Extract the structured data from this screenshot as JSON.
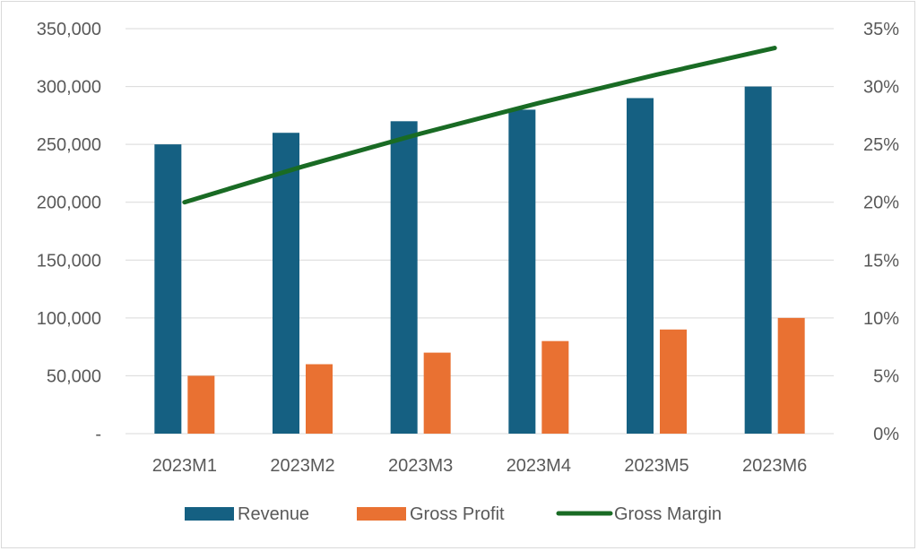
{
  "chart_data": {
    "type": "bar",
    "categories": [
      "2023M1",
      "2023M2",
      "2023M3",
      "2023M4",
      "2023M5",
      "2023M6"
    ],
    "series": [
      {
        "name": "Revenue",
        "type": "bar",
        "axis": "left",
        "color": "#156082",
        "values": [
          250000,
          260000,
          270000,
          280000,
          290000,
          300000
        ]
      },
      {
        "name": "Gross Profit",
        "type": "bar",
        "axis": "left",
        "color": "#E97132",
        "values": [
          50000,
          60000,
          70000,
          80000,
          90000,
          100000
        ]
      },
      {
        "name": "Gross Margin",
        "type": "line",
        "axis": "right",
        "color": "#196B24",
        "values": [
          0.2,
          0.2308,
          0.2593,
          0.2857,
          0.3103,
          0.3333
        ]
      }
    ],
    "y_left": {
      "ylim": [
        0,
        350000
      ],
      "tick_values": [
        0,
        50000,
        100000,
        150000,
        200000,
        250000,
        300000,
        350000
      ],
      "tick_labels": [
        "-",
        "50,000",
        "100,000",
        "150,000",
        "200,000",
        "250,000",
        "300,000",
        "350,000"
      ]
    },
    "y_right": {
      "ylim": [
        0,
        0.35
      ],
      "tick_values": [
        0,
        0.05,
        0.1,
        0.15,
        0.2,
        0.25,
        0.3,
        0.35
      ],
      "tick_labels": [
        "0%",
        "5%",
        "10%",
        "15%",
        "20%",
        "25%",
        "30%",
        "35%"
      ]
    },
    "grid": true,
    "legend": "bottom",
    "title": "",
    "xlabel": "",
    "ylabel": ""
  }
}
